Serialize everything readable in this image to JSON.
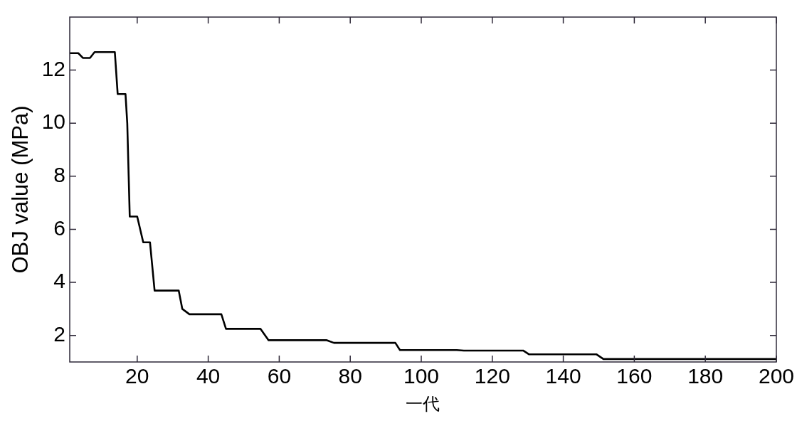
{
  "chart_data": {
    "type": "line",
    "xlabel": "一代",
    "ylabel": "OBJ value (MPa)",
    "x": [
      1,
      3.4,
      4.7,
      6.7,
      8,
      13.7,
      14.5,
      16.7,
      17.2,
      17.6,
      17.9,
      20,
      21.7,
      23.6,
      24.9,
      31.7,
      32.7,
      34.7,
      43.7,
      45,
      54.7,
      57,
      73.4,
      75.4,
      92.7,
      94,
      110,
      112,
      128.7,
      130.3,
      149.3,
      151.3,
      200
    ],
    "series": [
      {
        "color": "#000000",
        "values": [
          12.64,
          12.64,
          12.46,
          12.46,
          12.68,
          12.68,
          11.1,
          11.1,
          10,
          8,
          6.48,
          6.48,
          5.51,
          5.51,
          3.69,
          3.69,
          3.0,
          2.8,
          2.8,
          2.25,
          2.25,
          1.82,
          1.82,
          1.72,
          1.72,
          1.45,
          1.45,
          1.43,
          1.43,
          1.29,
          1.29,
          1.11,
          1.11
        ]
      }
    ],
    "xlim": [
      1,
      200
    ],
    "xticks": [
      20,
      40,
      60,
      80,
      100,
      120,
      140,
      160,
      180,
      200
    ],
    "ylim": [
      1,
      14
    ],
    "yticks": [
      2,
      4,
      6,
      8,
      10,
      12
    ],
    "grid": false,
    "legend": false,
    "marker": "none",
    "line_style": "solid"
  }
}
